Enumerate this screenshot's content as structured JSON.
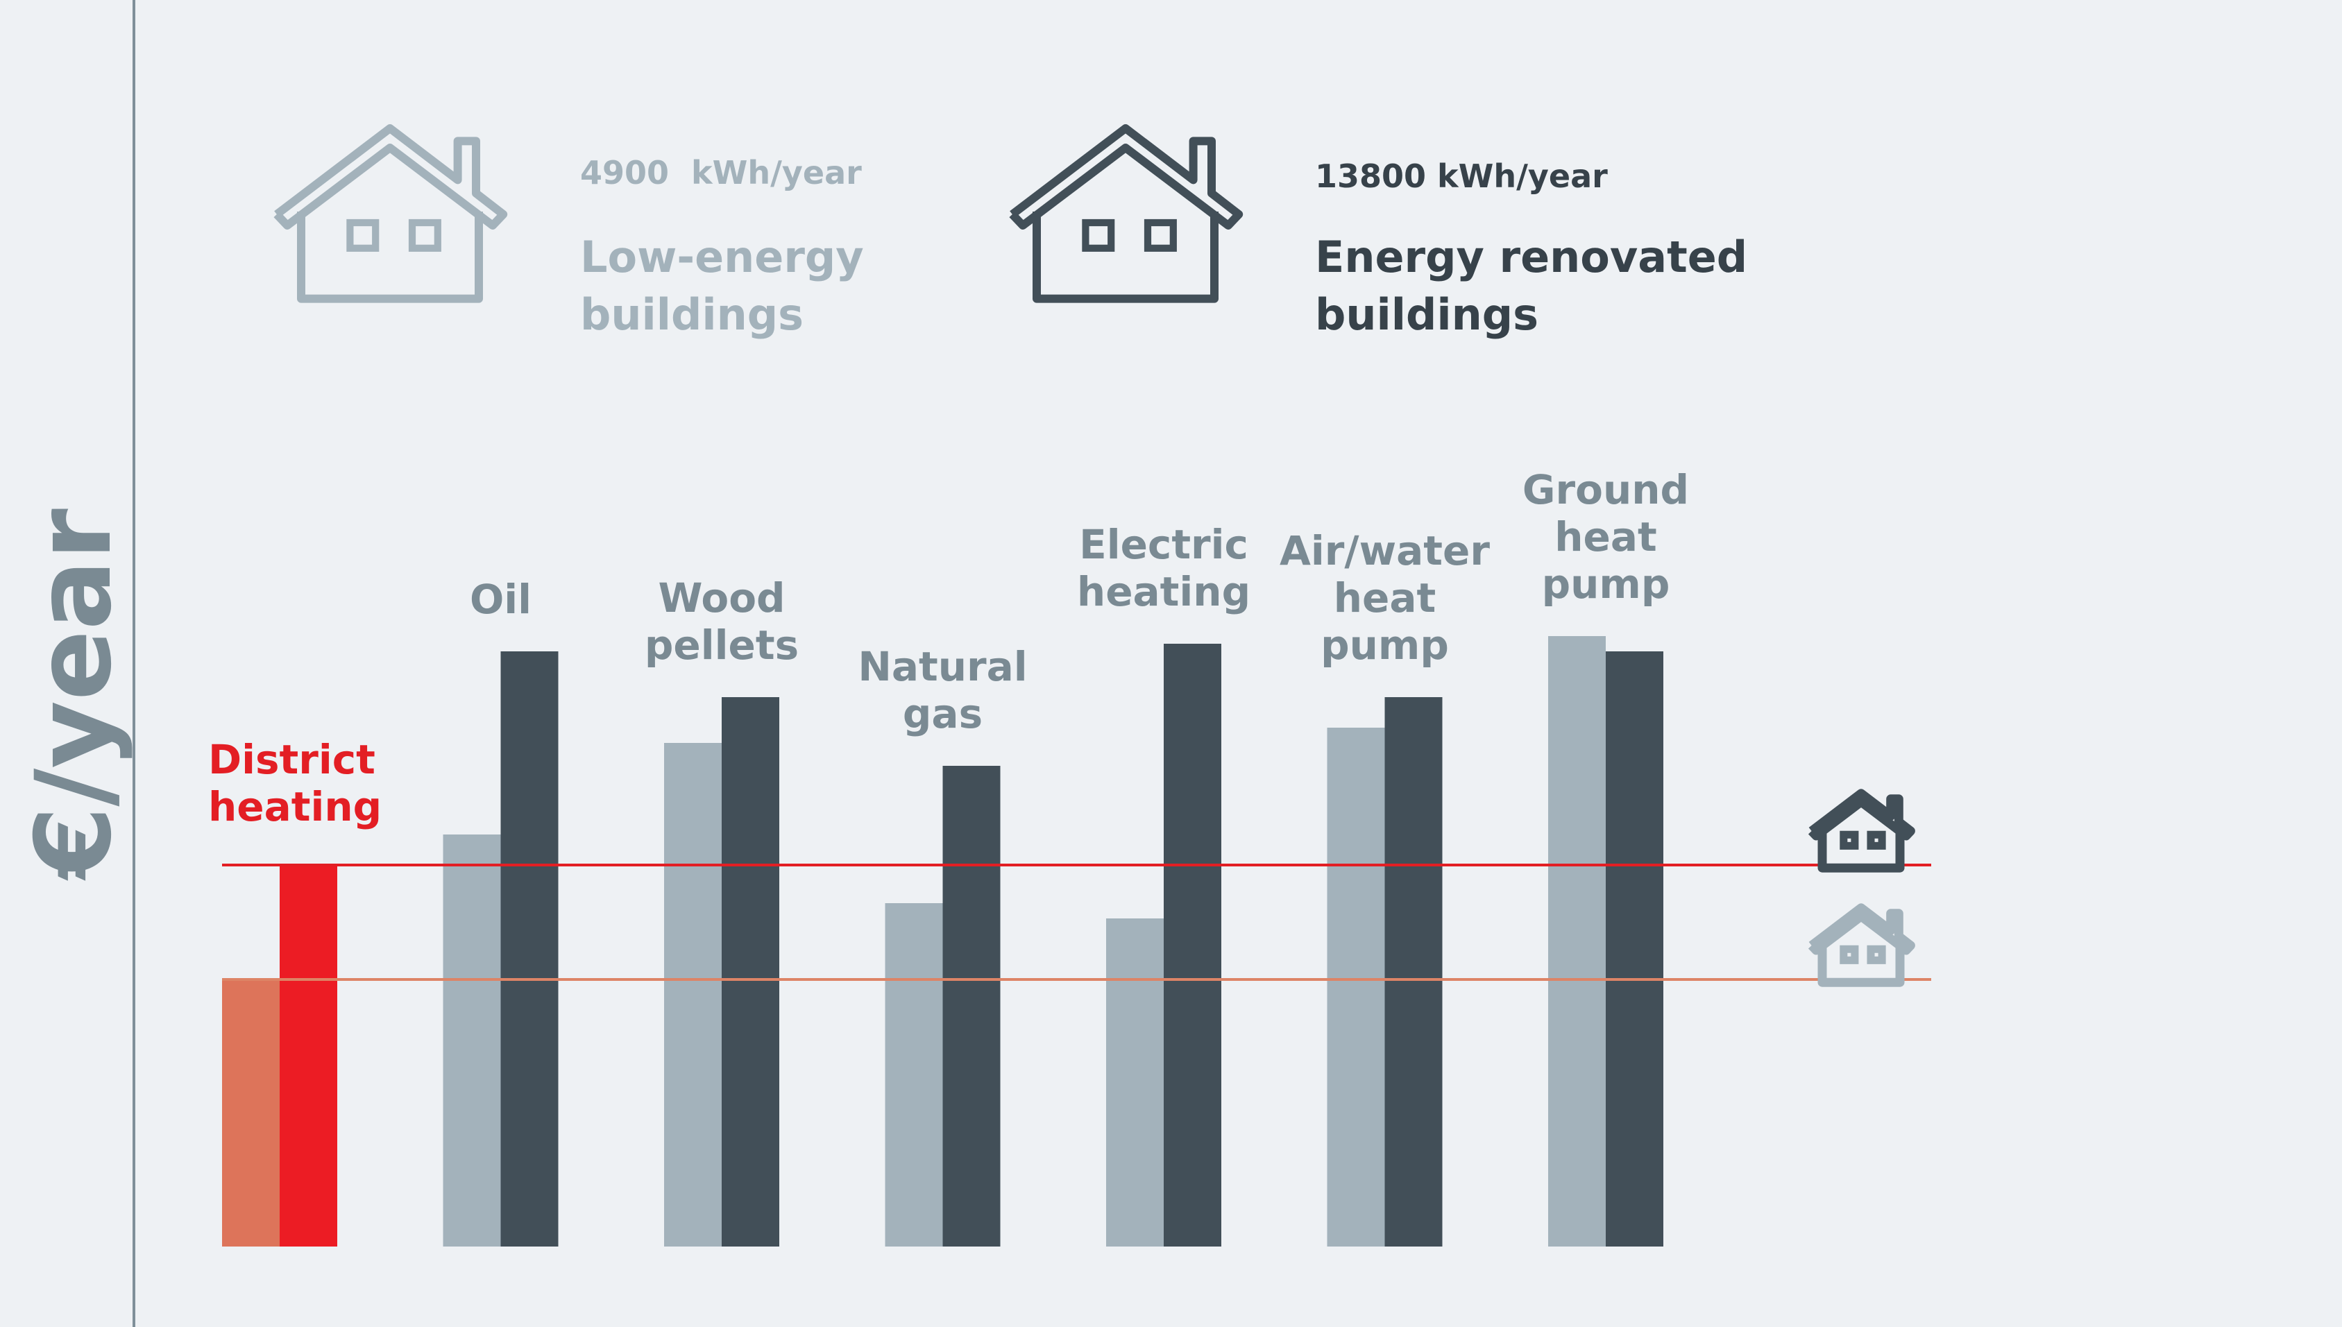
{
  "colors": {
    "background": "#eef1f4",
    "low_energy": "#a3b2bb",
    "renovated": "#424f58",
    "district_low": "#dd745a",
    "district_renovated": "#ec1c24",
    "category_label": "#7a8a93",
    "district_label": "#e31e24",
    "axis": "#7f8f99",
    "legend_low_text": "#a3b2bb",
    "legend_renovated_text": "#37424a",
    "line_renovated": "#e31e24",
    "line_low": "#dd8466"
  },
  "legend": {
    "low": {
      "icon": "house-outline-icon",
      "consumption": "4900  kWh/year",
      "title_line1": "Low-energy",
      "title_line2": "buildings"
    },
    "renovated": {
      "icon": "house-outline-icon",
      "consumption": "13800 kWh/year",
      "title_line1": "Energy renovated",
      "title_line2": "buildings"
    }
  },
  "chart_data": {
    "type": "bar",
    "ylabel": "€/year",
    "categories": [
      [
        "District",
        "heating"
      ],
      [
        "Oil"
      ],
      [
        "Wood",
        "pellets"
      ],
      [
        "Natural",
        "gas"
      ],
      [
        "Electric",
        "heating"
      ],
      [
        "Air/water",
        "heat",
        "pump"
      ],
      [
        "Ground",
        "heat",
        "pump"
      ]
    ],
    "series": [
      {
        "name": "Low-energy buildings",
        "values": [
          35,
          54,
          66,
          45,
          43,
          68,
          80
        ]
      },
      {
        "name": "Energy renovated buildings",
        "values": [
          50,
          78,
          72,
          63,
          79,
          72,
          78
        ]
      }
    ],
    "reference_lines": [
      {
        "series": "Energy renovated buildings",
        "value": 50,
        "icon": "house-outline-icon"
      },
      {
        "series": "Low-energy buildings",
        "value": 35,
        "icon": "house-outline-icon"
      }
    ],
    "ylim": [
      0,
      100
    ],
    "grid": false,
    "data_labels": false
  }
}
